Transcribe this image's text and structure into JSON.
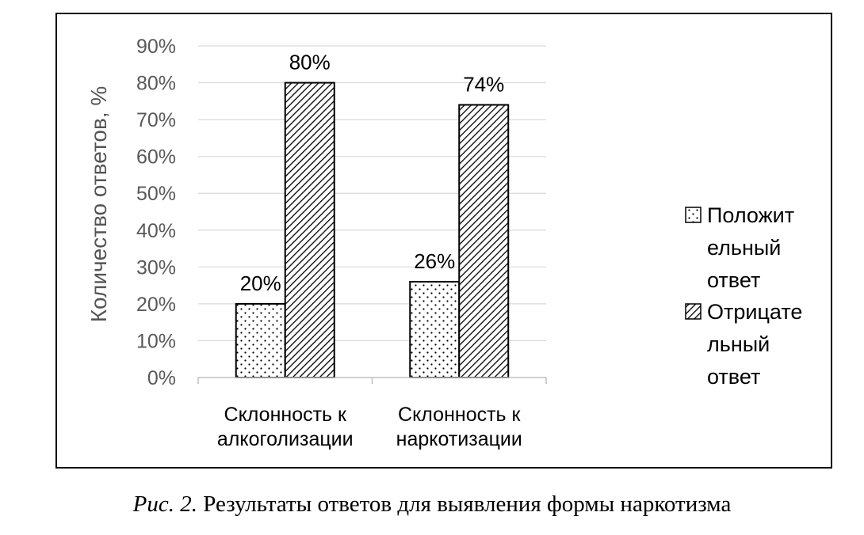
{
  "chart_data": {
    "type": "bar",
    "title": "",
    "ylabel": "Количество ответов, %",
    "xlabel": "",
    "ylim": [
      0,
      90
    ],
    "yticks": [
      "0%",
      "10%",
      "20%",
      "30%",
      "40%",
      "50%",
      "60%",
      "70%",
      "80%",
      "90%"
    ],
    "categories": [
      [
        "Склонность к",
        "алкоголизации"
      ],
      [
        "Склонность к",
        "наркотизации"
      ]
    ],
    "series": [
      {
        "name": [
          "Положит",
          "ельный",
          "ответ"
        ],
        "values": [
          20,
          26
        ],
        "labels": [
          "20%",
          "26%"
        ],
        "pattern": "dots",
        "color": "#000000"
      },
      {
        "name": [
          "Отрицате",
          "льный",
          "ответ"
        ],
        "values": [
          80,
          74
        ],
        "labels": [
          "80%",
          "74%"
        ],
        "pattern": "diagonal-hatch",
        "color": "#000000"
      }
    ],
    "grid": true,
    "legend": "right"
  },
  "caption": {
    "figure_label": "Рис. 2.",
    "text": "Результаты ответов для выявления формы наркотизма"
  }
}
